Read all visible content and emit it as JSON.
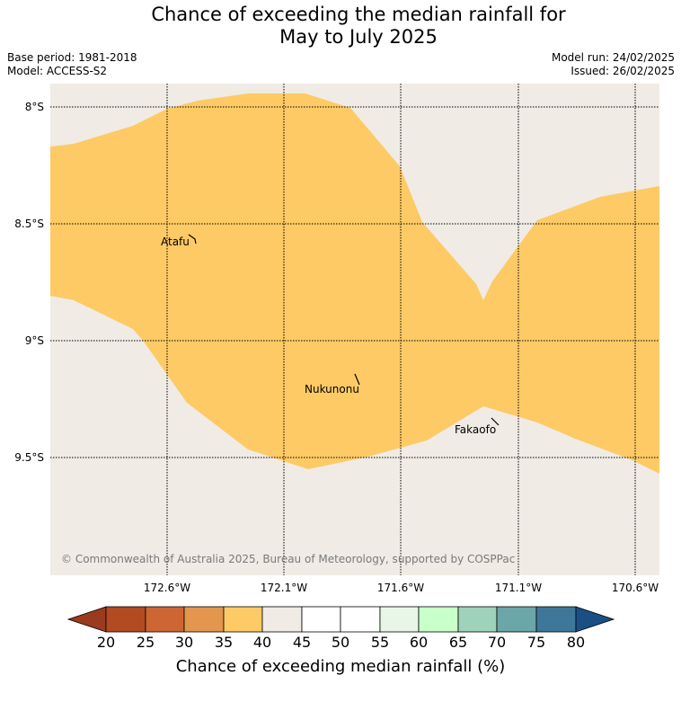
{
  "title": {
    "line1": "Chance of exceeding the median rainfall for",
    "line2": "May to July 2025"
  },
  "meta": {
    "base_period": "Base period: 1981-2018",
    "model": "Model: ACCESS-S2",
    "model_run": "Model run: 24/02/2025",
    "issued": "Issued: 26/02/2025"
  },
  "map": {
    "lat_labels": [
      "8°S",
      "8.5°S",
      "9°S",
      "9.5°S"
    ],
    "lon_labels": [
      "172.6°W",
      "172.1°W",
      "171.6°W",
      "171.1°W",
      "170.6°W"
    ],
    "places": [
      "Atafu",
      "Nukunonu",
      "Fakaofo"
    ],
    "copyright": "© Commonwealth of Australia 2025, Bureau of Meteorology, supported by COSPPac",
    "colors": {
      "background_band": "#f0ebe4",
      "forecast_band": "#fdca65",
      "grid": "#000000"
    },
    "forecast_category": "35-40"
  },
  "colorbar": {
    "ticks": [
      "20",
      "25",
      "30",
      "35",
      "40",
      "45",
      "50",
      "55",
      "60",
      "65",
      "70",
      "75",
      "80"
    ],
    "colors": [
      "#9a3a1e",
      "#b24a22",
      "#cd6632",
      "#e3964d",
      "#fdca65",
      "#f0ebe4",
      "#ffffff",
      "#ffffff",
      "#e8f6e8",
      "#c9ffc9",
      "#9ed2ba",
      "#6ba6a8",
      "#3e7799",
      "#1a4f86"
    ],
    "label": "Chance of exceeding median rainfall (%)"
  }
}
